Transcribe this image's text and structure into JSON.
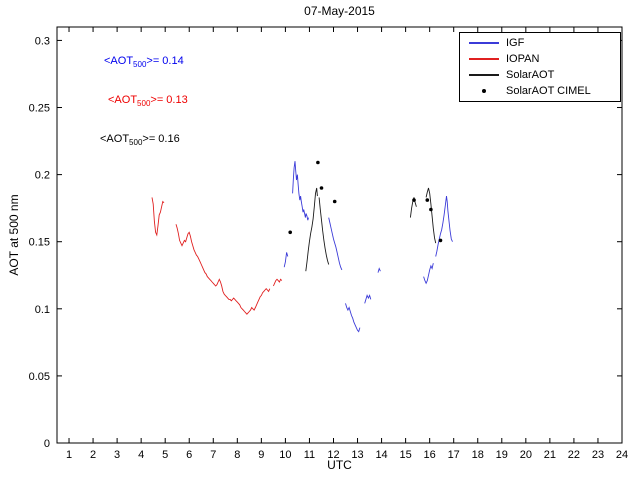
{
  "figure": {
    "title": "07-May-2015",
    "xlabel": "UTC",
    "ylabel": "AOT at 500 nm"
  },
  "annotations": [
    {
      "prefix": "<AOT",
      "sub": "500",
      "suffix": ">= 0.14",
      "color": "#0000ee"
    },
    {
      "prefix": "<AOT",
      "sub": "500",
      "suffix": ">= 0.13",
      "color": "#ee0000"
    },
    {
      "prefix": "<AOT",
      "sub": "500",
      "suffix": ">= 0.16",
      "color": "#000000"
    }
  ],
  "legend": {
    "items": [
      {
        "label": "IGF",
        "color": "#3b3bd8",
        "type": "line"
      },
      {
        "label": "IOPAN",
        "color": "#e02020",
        "type": "line"
      },
      {
        "label": "SolarAOT",
        "color": "#1a1a1a",
        "type": "line"
      },
      {
        "label": "SolarAOT CIMEL",
        "color": "#000000",
        "type": "dot"
      }
    ]
  },
  "chart_data": {
    "type": "line",
    "title": "07-May-2015",
    "xlabel": "UTC",
    "ylabel": "AOT at 500 nm",
    "xlim": [
      0.5,
      24
    ],
    "ylim": [
      0,
      0.31
    ],
    "x_ticks": [
      1,
      2,
      3,
      4,
      5,
      6,
      7,
      8,
      9,
      10,
      11,
      12,
      13,
      14,
      15,
      16,
      17,
      18,
      19,
      20,
      21,
      22,
      23,
      24
    ],
    "y_ticks": [
      0,
      0.05,
      0.1,
      0.15,
      0.2,
      0.25,
      0.3
    ],
    "y_tick_labels": [
      "0",
      "0.05",
      "0.1",
      "0.15",
      "0.2",
      "0.25",
      "0.3"
    ],
    "grid": false,
    "legend_position": "top-right",
    "series": [
      {
        "name": "IOPAN",
        "color": "#e02020",
        "mean_aot_500": 0.13,
        "segments": [
          [
            [
              4.45,
              0.183
            ],
            [
              4.5,
              0.178
            ],
            [
              4.55,
              0.165
            ],
            [
              4.6,
              0.157
            ],
            [
              4.65,
              0.155
            ],
            [
              4.7,
              0.162
            ],
            [
              4.75,
              0.17
            ],
            [
              4.8,
              0.172
            ],
            [
              4.85,
              0.176
            ],
            [
              4.9,
              0.18
            ],
            [
              4.95,
              0.179
            ]
          ],
          [
            [
              5.45,
              0.163
            ],
            [
              5.5,
              0.16
            ],
            [
              5.55,
              0.156
            ],
            [
              5.6,
              0.151
            ],
            [
              5.65,
              0.149
            ],
            [
              5.7,
              0.147
            ],
            [
              5.75,
              0.149
            ],
            [
              5.8,
              0.151
            ],
            [
              5.85,
              0.15
            ],
            [
              5.9,
              0.153
            ],
            [
              5.95,
              0.156
            ],
            [
              6.0,
              0.157
            ],
            [
              6.05,
              0.154
            ],
            [
              6.1,
              0.15
            ],
            [
              6.15,
              0.147
            ],
            [
              6.2,
              0.144
            ],
            [
              6.25,
              0.142
            ],
            [
              6.3,
              0.14
            ],
            [
              6.35,
              0.139
            ],
            [
              6.4,
              0.137
            ],
            [
              6.45,
              0.135
            ],
            [
              6.5,
              0.133
            ],
            [
              6.55,
              0.131
            ],
            [
              6.6,
              0.129
            ],
            [
              6.65,
              0.127
            ],
            [
              6.7,
              0.126
            ],
            [
              6.75,
              0.124
            ],
            [
              6.8,
              0.123
            ],
            [
              6.85,
              0.122
            ],
            [
              6.9,
              0.121
            ],
            [
              6.95,
              0.12
            ],
            [
              7.0,
              0.119
            ],
            [
              7.05,
              0.118
            ],
            [
              7.1,
              0.117
            ],
            [
              7.15,
              0.118
            ],
            [
              7.2,
              0.12
            ],
            [
              7.25,
              0.122
            ],
            [
              7.3,
              0.12
            ],
            [
              7.35,
              0.117
            ],
            [
              7.4,
              0.113
            ],
            [
              7.45,
              0.111
            ],
            [
              7.5,
              0.11
            ],
            [
              7.55,
              0.109
            ],
            [
              7.6,
              0.108
            ],
            [
              7.65,
              0.107
            ],
            [
              7.7,
              0.107
            ],
            [
              7.75,
              0.106
            ],
            [
              7.8,
              0.107
            ],
            [
              7.85,
              0.108
            ],
            [
              7.9,
              0.107
            ],
            [
              7.95,
              0.106
            ],
            [
              8.0,
              0.105
            ],
            [
              8.05,
              0.104
            ],
            [
              8.1,
              0.103
            ],
            [
              8.15,
              0.101
            ],
            [
              8.2,
              0.1
            ],
            [
              8.25,
              0.099
            ],
            [
              8.3,
              0.098
            ],
            [
              8.35,
              0.097
            ],
            [
              8.4,
              0.096
            ],
            [
              8.45,
              0.097
            ],
            [
              8.5,
              0.098
            ],
            [
              8.55,
              0.099
            ],
            [
              8.6,
              0.101
            ],
            [
              8.65,
              0.1
            ],
            [
              8.7,
              0.099
            ],
            [
              8.75,
              0.101
            ],
            [
              8.8,
              0.103
            ],
            [
              8.85,
              0.105
            ],
            [
              8.9,
              0.107
            ],
            [
              8.95,
              0.109
            ],
            [
              9.0,
              0.11
            ],
            [
              9.05,
              0.112
            ],
            [
              9.1,
              0.113
            ],
            [
              9.15,
              0.114
            ],
            [
              9.2,
              0.115
            ],
            [
              9.25,
              0.114
            ],
            [
              9.3,
              0.113
            ],
            [
              9.35,
              0.115
            ]
          ],
          [
            [
              9.5,
              0.117
            ],
            [
              9.55,
              0.119
            ],
            [
              9.6,
              0.121
            ],
            [
              9.65,
              0.122
            ],
            [
              9.7,
              0.121
            ],
            [
              9.75,
              0.12
            ],
            [
              9.8,
              0.122
            ],
            [
              9.85,
              0.121
            ]
          ]
        ]
      },
      {
        "name": "IGF",
        "color": "#3b3bd8",
        "mean_aot_500": 0.14,
        "segments": [
          [
            [
              9.95,
              0.131
            ],
            [
              10.0,
              0.135
            ],
            [
              10.05,
              0.142
            ],
            [
              10.1,
              0.139
            ]
          ],
          [
            [
              10.3,
              0.186
            ],
            [
              10.33,
              0.196
            ],
            [
              10.36,
              0.205
            ],
            [
              10.4,
              0.21
            ],
            [
              10.43,
              0.203
            ],
            [
              10.46,
              0.196
            ],
            [
              10.5,
              0.2
            ],
            [
              10.53,
              0.193
            ],
            [
              10.56,
              0.186
            ],
            [
              10.6,
              0.181
            ],
            [
              10.63,
              0.184
            ],
            [
              10.66,
              0.18
            ],
            [
              10.7,
              0.176
            ],
            [
              10.73,
              0.172
            ],
            [
              10.76,
              0.174
            ],
            [
              10.8,
              0.171
            ],
            [
              10.83,
              0.168
            ],
            [
              10.86,
              0.171
            ],
            [
              10.9,
              0.169
            ],
            [
              10.93,
              0.166
            ],
            [
              10.96,
              0.168
            ]
          ],
          [
            [
              11.8,
              0.168
            ],
            [
              11.85,
              0.164
            ],
            [
              11.9,
              0.16
            ],
            [
              11.95,
              0.156
            ],
            [
              12.0,
              0.152
            ],
            [
              12.05,
              0.149
            ],
            [
              12.1,
              0.146
            ],
            [
              12.15,
              0.142
            ],
            [
              12.2,
              0.138
            ],
            [
              12.25,
              0.134
            ],
            [
              12.3,
              0.131
            ],
            [
              12.35,
              0.129
            ]
          ],
          [
            [
              12.5,
              0.104
            ],
            [
              12.55,
              0.101
            ],
            [
              12.6,
              0.099
            ],
            [
              12.65,
              0.101
            ],
            [
              12.7,
              0.098
            ],
            [
              12.75,
              0.095
            ],
            [
              12.8,
              0.093
            ],
            [
              12.85,
              0.09
            ],
            [
              12.9,
              0.088
            ],
            [
              12.95,
              0.086
            ],
            [
              13.0,
              0.084
            ],
            [
              13.05,
              0.083
            ],
            [
              13.1,
              0.086
            ]
          ],
          [
            [
              13.3,
              0.104
            ],
            [
              13.35,
              0.107
            ],
            [
              13.4,
              0.11
            ],
            [
              13.45,
              0.108
            ],
            [
              13.5,
              0.11
            ],
            [
              13.55,
              0.107
            ]
          ],
          [
            [
              13.85,
              0.127
            ],
            [
              13.9,
              0.13
            ],
            [
              13.95,
              0.128
            ]
          ],
          [
            [
              15.75,
              0.124
            ],
            [
              15.8,
              0.121
            ],
            [
              15.85,
              0.119
            ],
            [
              15.9,
              0.121
            ],
            [
              15.95,
              0.125
            ],
            [
              16.0,
              0.129
            ],
            [
              16.05,
              0.132
            ],
            [
              16.1,
              0.13
            ],
            [
              16.15,
              0.134
            ]
          ],
          [
            [
              16.25,
              0.139
            ],
            [
              16.3,
              0.143
            ],
            [
              16.35,
              0.148
            ],
            [
              16.4,
              0.152
            ],
            [
              16.45,
              0.156
            ],
            [
              16.5,
              0.159
            ],
            [
              16.55,
              0.164
            ],
            [
              16.6,
              0.17
            ],
            [
              16.65,
              0.177
            ],
            [
              16.7,
              0.184
            ],
            [
              16.73,
              0.18
            ],
            [
              16.76,
              0.173
            ],
            [
              16.8,
              0.166
            ],
            [
              16.85,
              0.158
            ],
            [
              16.9,
              0.152
            ],
            [
              16.95,
              0.15
            ]
          ]
        ]
      },
      {
        "name": "SolarAOT",
        "color": "#1a1a1a",
        "mean_aot_500": 0.16,
        "segments": [
          [
            [
              10.85,
              0.128
            ],
            [
              10.9,
              0.135
            ],
            [
              10.95,
              0.143
            ],
            [
              11.0,
              0.15
            ],
            [
              11.05,
              0.156
            ],
            [
              11.1,
              0.161
            ],
            [
              11.15,
              0.167
            ],
            [
              11.2,
              0.176
            ],
            [
              11.25,
              0.186
            ],
            [
              11.3,
              0.19
            ],
            [
              11.33,
              0.184
            ]
          ],
          [
            [
              11.4,
              0.183
            ],
            [
              11.45,
              0.174
            ],
            [
              11.5,
              0.166
            ],
            [
              11.55,
              0.158
            ],
            [
              11.6,
              0.151
            ],
            [
              11.65,
              0.145
            ],
            [
              11.7,
              0.14
            ],
            [
              11.75,
              0.136
            ],
            [
              11.8,
              0.133
            ]
          ],
          [
            [
              15.2,
              0.168
            ],
            [
              15.25,
              0.175
            ],
            [
              15.3,
              0.18
            ],
            [
              15.35,
              0.183
            ],
            [
              15.4,
              0.179
            ],
            [
              15.45,
              0.176
            ]
          ],
          [
            [
              15.85,
              0.183
            ],
            [
              15.9,
              0.187
            ],
            [
              15.95,
              0.19
            ],
            [
              16.0,
              0.186
            ],
            [
              16.05,
              0.178
            ],
            [
              16.1,
              0.169
            ],
            [
              16.15,
              0.16
            ],
            [
              16.2,
              0.153
            ],
            [
              16.25,
              0.149
            ]
          ]
        ]
      },
      {
        "name": "SolarAOT CIMEL",
        "color": "#000000",
        "marker": "dot",
        "points": [
          [
            10.2,
            0.157
          ],
          [
            11.35,
            0.209
          ],
          [
            11.5,
            0.19
          ],
          [
            12.05,
            0.18
          ],
          [
            15.35,
            0.181
          ],
          [
            15.9,
            0.181
          ],
          [
            16.05,
            0.174
          ],
          [
            16.45,
            0.151
          ]
        ]
      }
    ]
  }
}
